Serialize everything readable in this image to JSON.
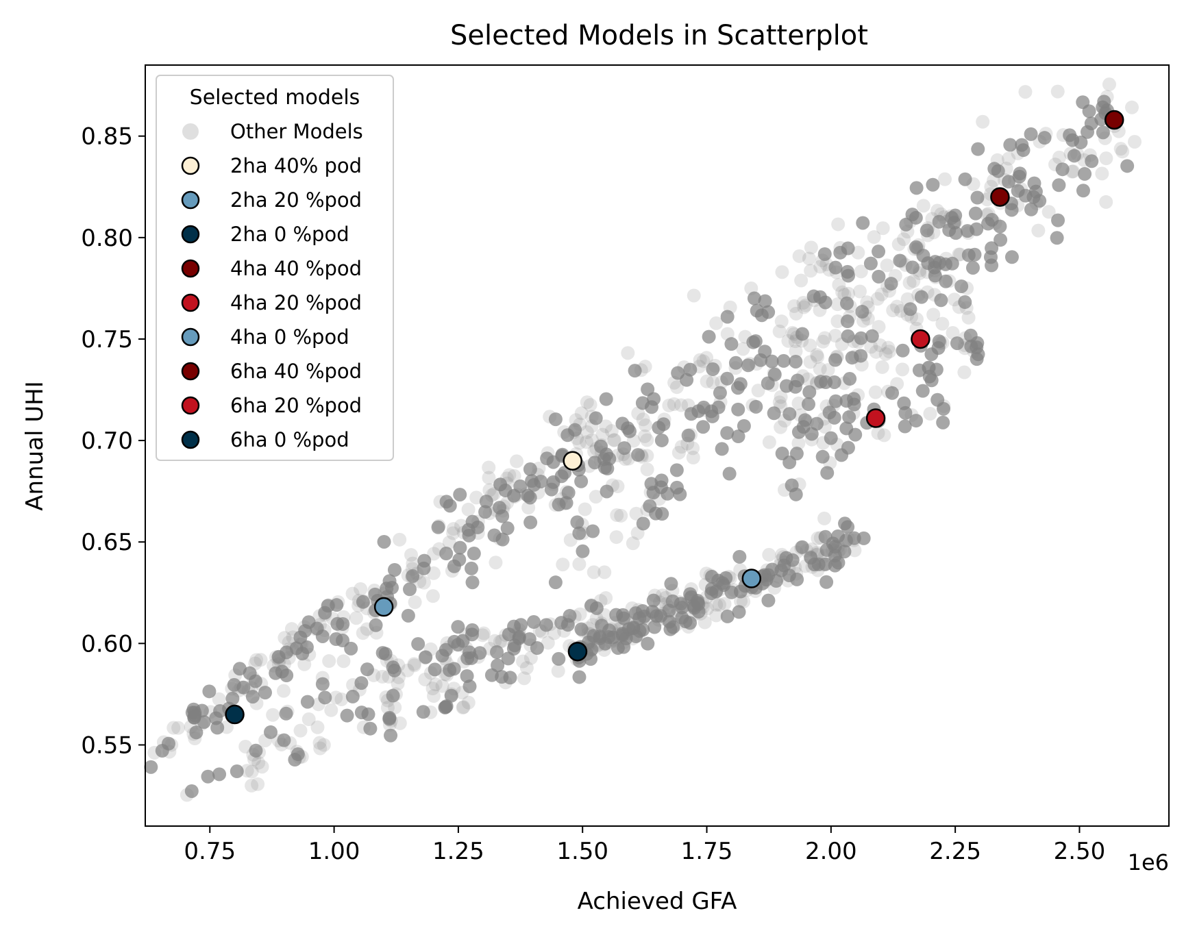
{
  "chart_data": {
    "type": "scatter",
    "title": "Selected Models in Scatterplot",
    "xlabel": "Achieved GFA",
    "ylabel": "Annual UHI",
    "x_offset_label": "1e6",
    "xlim": [
      0.62,
      2.68
    ],
    "ylim": [
      0.51,
      0.885
    ],
    "x_ticks": [
      0.75,
      1.0,
      1.25,
      1.5,
      1.75,
      2.0,
      2.25,
      2.5
    ],
    "x_tick_labels": [
      "0.75",
      "1.00",
      "1.25",
      "1.50",
      "1.75",
      "2.00",
      "2.25",
      "2.50"
    ],
    "y_ticks": [
      0.55,
      0.6,
      0.65,
      0.7,
      0.75,
      0.8,
      0.85
    ],
    "y_tick_labels": [
      "0.55",
      "0.60",
      "0.65",
      "0.70",
      "0.75",
      "0.80",
      "0.85"
    ],
    "grid": false,
    "legend": {
      "title": "Selected models",
      "placement": "upper-left",
      "entries": [
        {
          "label": "Other Models",
          "color": "#808080",
          "alpha": 0.25,
          "edge": "none"
        },
        {
          "label": "2ha 40% pod",
          "color": "#fdf0d5",
          "edge": "#000000"
        },
        {
          "label": "2ha 20 %pod",
          "color": "#669bbc",
          "edge": "#000000"
        },
        {
          "label": "2ha 0 %pod",
          "color": "#003049",
          "edge": "#000000"
        },
        {
          "label": "4ha 40 %pod",
          "color": "#780000",
          "edge": "#000000"
        },
        {
          "label": "4ha 20 %pod",
          "color": "#c1121f",
          "edge": "#000000"
        },
        {
          "label": "4ha 0 %pod",
          "color": "#669bbc",
          "edge": "#000000"
        },
        {
          "label": "6ha 40 %pod",
          "color": "#780000",
          "edge": "#000000"
        },
        {
          "label": "6ha 20 %pod",
          "color": "#c1121f",
          "edge": "#000000"
        },
        {
          "label": "6ha 0 %pod",
          "color": "#003049",
          "edge": "#000000"
        }
      ]
    },
    "series": [
      {
        "name": "Other Models",
        "color": "#808080",
        "clusters": [
          {
            "x0": 0.64,
            "y0": 0.545,
            "x1": 1.0,
            "y1": 0.612,
            "spread": 0.006,
            "n": 90
          },
          {
            "x0": 1.0,
            "y0": 0.605,
            "x1": 1.55,
            "y1": 0.705,
            "spread": 0.012,
            "n": 170
          },
          {
            "x0": 1.45,
            "y0": 0.66,
            "x1": 2.05,
            "y1": 0.78,
            "spread": 0.02,
            "n": 230
          },
          {
            "x0": 1.9,
            "y0": 0.7,
            "x1": 2.3,
            "y1": 0.76,
            "spread": 0.02,
            "n": 140
          },
          {
            "x0": 2.05,
            "y0": 0.77,
            "x1": 2.6,
            "y1": 0.86,
            "spread": 0.015,
            "n": 190
          },
          {
            "x0": 0.82,
            "y0": 0.54,
            "x1": 1.1,
            "y1": 0.588,
            "spread": 0.008,
            "n": 40
          },
          {
            "x0": 1.1,
            "y0": 0.585,
            "x1": 1.55,
            "y1": 0.615,
            "spread": 0.006,
            "n": 90
          },
          {
            "x0": 1.5,
            "y0": 0.6,
            "x1": 2.05,
            "y1": 0.65,
            "spread": 0.006,
            "n": 220
          },
          {
            "x0": 1.05,
            "y0": 0.56,
            "x1": 1.55,
            "y1": 0.6,
            "spread": 0.006,
            "n": 60
          },
          {
            "x0": 0.65,
            "y0": 0.525,
            "x1": 0.98,
            "y1": 0.55,
            "spread": 0.004,
            "n": 12
          }
        ]
      },
      {
        "name": "2ha 40% pod",
        "color": "#fdf0d5",
        "points": [
          [
            1.48,
            0.69
          ]
        ]
      },
      {
        "name": "2ha 20 %pod",
        "color": "#669bbc",
        "points": [
          [
            1.1,
            0.618
          ]
        ]
      },
      {
        "name": "2ha 0 %pod",
        "color": "#003049",
        "points": [
          [
            0.8,
            0.565
          ]
        ]
      },
      {
        "name": "4ha 40 %pod",
        "color": "#780000",
        "points": [
          [
            2.34,
            0.82
          ]
        ]
      },
      {
        "name": "4ha 20 %pod",
        "color": "#c1121f",
        "points": [
          [
            2.18,
            0.75
          ]
        ]
      },
      {
        "name": "4ha 0 %pod",
        "color": "#669bbc",
        "points": [
          [
            1.84,
            0.632
          ]
        ]
      },
      {
        "name": "6ha 40 %pod",
        "color": "#780000",
        "points": [
          [
            2.57,
            0.858
          ]
        ]
      },
      {
        "name": "6ha 20 %pod",
        "color": "#c1121f",
        "points": [
          [
            2.09,
            0.711
          ]
        ]
      },
      {
        "name": "6ha 0 %pod",
        "color": "#003049",
        "points": [
          [
            1.49,
            0.596
          ]
        ]
      }
    ]
  }
}
